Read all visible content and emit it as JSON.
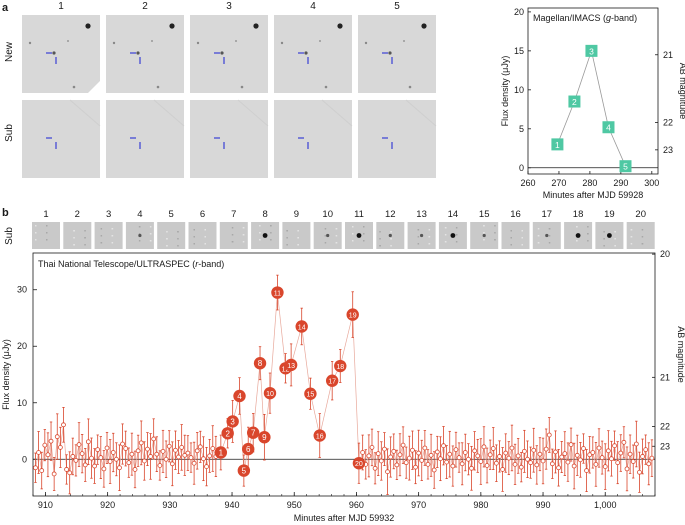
{
  "panel_a_label": "a",
  "panel_b_label": "b",
  "row_labels": {
    "new": "New",
    "sub": "Sub"
  },
  "frame_numbers_a": [
    "1",
    "2",
    "3",
    "4",
    "5"
  ],
  "chart_data": [
    {
      "type": "line",
      "title": "Magellan/IMACS (g-band)",
      "title_parts": {
        "prefix": "Magellan/IMACS (",
        "band": "g",
        "suffix": "-band)"
      },
      "xlabel": "Minutes after MJD 59928",
      "ylabel": "Flux density (μJy)",
      "ylabel_right": "AB magnitude",
      "xlim": [
        260,
        302
      ],
      "ylim": [
        -0.8,
        20.5
      ],
      "xticks": [
        "260",
        "270",
        "280",
        "290",
        "300"
      ],
      "xtick_values": [
        260,
        270,
        280,
        290,
        300
      ],
      "yticks": [
        "0",
        "5",
        "10",
        "15",
        "20"
      ],
      "ytick_values": [
        0,
        5,
        10,
        15,
        20
      ],
      "right_ticks": [
        {
          "label": "21",
          "flux": 14.5
        },
        {
          "label": "22",
          "flux": 5.8
        },
        {
          "label": "23",
          "flux": 2.3
        }
      ],
      "points": [
        {
          "label": "1",
          "x": 269.5,
          "y": 3.0
        },
        {
          "label": "2",
          "x": 275.0,
          "y": 8.5
        },
        {
          "label": "3",
          "x": 280.5,
          "y": 15.0
        },
        {
          "label": "4",
          "x": 286.0,
          "y": 5.2
        },
        {
          "label": "5",
          "x": 291.5,
          "y": 0.2
        }
      ],
      "color": "#4fc8a3"
    },
    {
      "type": "line",
      "title": "Thai National Telescope/ULTRASPEC (r-band)",
      "title_parts": {
        "prefix": "Thai National Telescope/ULTRASPEC (",
        "band": "r",
        "suffix": "-band)"
      },
      "xlabel": "Minutes after MJD 59932",
      "ylabel": "Flux density (μJy)",
      "ylabel_right": "AB magnitude",
      "sub_label": "Sub",
      "thumbnail_numbers": [
        "1",
        "2",
        "3",
        "4",
        "5",
        "6",
        "7",
        "8",
        "9",
        "10",
        "11",
        "12",
        "13",
        "14",
        "15",
        "16",
        "17",
        "18",
        "19",
        "20"
      ],
      "xlim": [
        908,
        1008
      ],
      "ylim": [
        -6.5,
        36.5
      ],
      "xticks": [
        "910",
        "920",
        "930",
        "940",
        "950",
        "960",
        "970",
        "980",
        "990",
        "1,000"
      ],
      "xtick_values": [
        910,
        920,
        930,
        940,
        950,
        960,
        970,
        980,
        990,
        1000
      ],
      "yticks": [
        "0",
        "10",
        "20",
        "30"
      ],
      "ytick_values": [
        0,
        10,
        20,
        30
      ],
      "right_ticks": [
        {
          "label": "20",
          "flux": 36.3
        },
        {
          "label": "21",
          "flux": 14.5
        },
        {
          "label": "22",
          "flux": 5.8
        },
        {
          "label": "23",
          "flux": 2.3
        }
      ],
      "numbered_points": [
        {
          "label": "1",
          "x": 938.2,
          "y": 1.2
        },
        {
          "label": "2",
          "x": 939.3,
          "y": 4.6
        },
        {
          "label": "3",
          "x": 940.1,
          "y": 6.7
        },
        {
          "label": "4",
          "x": 941.2,
          "y": 11.2
        },
        {
          "label": "5",
          "x": 941.9,
          "y": -2.0
        },
        {
          "label": "6",
          "x": 942.6,
          "y": 1.8
        },
        {
          "label": "7",
          "x": 943.4,
          "y": 4.7
        },
        {
          "label": "8",
          "x": 944.5,
          "y": 17.0
        },
        {
          "label": "9",
          "x": 945.2,
          "y": 3.9
        },
        {
          "label": "10",
          "x": 946.1,
          "y": 11.7
        },
        {
          "label": "11",
          "x": 947.3,
          "y": 29.5
        },
        {
          "label": "12",
          "x": 948.6,
          "y": 16.1
        },
        {
          "label": "13",
          "x": 949.5,
          "y": 16.7
        },
        {
          "label": "14",
          "x": 951.2,
          "y": 23.5
        },
        {
          "label": "15",
          "x": 952.6,
          "y": 11.6
        },
        {
          "label": "16",
          "x": 954.1,
          "y": 4.2
        },
        {
          "label": "17",
          "x": 956.1,
          "y": 13.9
        },
        {
          "label": "18",
          "x": 957.4,
          "y": 16.5
        },
        {
          "label": "19",
          "x": 959.4,
          "y": 25.6
        },
        {
          "label": "20",
          "x": 960.4,
          "y": -0.7
        }
      ],
      "data_points": [
        {
          "x": 908.4,
          "y": -1.5
        },
        {
          "x": 908.9,
          "y": 1.2
        },
        {
          "x": 909.4,
          "y": -2.0
        },
        {
          "x": 909.9,
          "y": 2.5
        },
        {
          "x": 910.4,
          "y": 0.8
        },
        {
          "x": 910.9,
          "y": 3.2
        },
        {
          "x": 911.4,
          "y": -2.6
        },
        {
          "x": 911.9,
          "y": 4.0
        },
        {
          "x": 912.4,
          "y": 2.1
        },
        {
          "x": 912.9,
          "y": 6.1
        },
        {
          "x": 913.4,
          "y": -1.8
        },
        {
          "x": 913.9,
          "y": -2.4
        },
        {
          "x": 914.4,
          "y": 0.5
        },
        {
          "x": 914.9,
          "y": -0.2
        },
        {
          "x": 915.4,
          "y": 2.6
        },
        {
          "x": 915.9,
          "y": 1.0
        },
        {
          "x": 916.4,
          "y": -1.0
        },
        {
          "x": 916.9,
          "y": 3.1
        },
        {
          "x": 917.4,
          "y": 0.2
        },
        {
          "x": 917.9,
          "y": -1.2
        },
        {
          "x": 918.4,
          "y": 1.7
        },
        {
          "x": 918.9,
          "y": 0.3
        },
        {
          "x": 919.4,
          "y": -1.7
        },
        {
          "x": 919.9,
          "y": 2.0
        },
        {
          "x": 920.4,
          "y": -0.4
        },
        {
          "x": 920.9,
          "y": 1.2
        },
        {
          "x": 921.4,
          "y": 0.0
        },
        {
          "x": 921.9,
          "y": -1.5
        },
        {
          "x": 922.4,
          "y": 2.7
        },
        {
          "x": 922.9,
          "y": 1.9
        },
        {
          "x": 923.4,
          "y": -0.6
        },
        {
          "x": 923.9,
          "y": 0.9
        },
        {
          "x": 924.4,
          "y": -1.8
        },
        {
          "x": 924.9,
          "y": 1.5
        },
        {
          "x": 925.4,
          "y": 2.9
        },
        {
          "x": 925.9,
          "y": -0.3
        },
        {
          "x": 926.4,
          "y": 1.8
        },
        {
          "x": 926.9,
          "y": 0.5
        },
        {
          "x": 927.4,
          "y": 3.6
        },
        {
          "x": 927.9,
          "y": 0.9
        },
        {
          "x": 928.4,
          "y": -1.1
        },
        {
          "x": 928.9,
          "y": 1.4
        },
        {
          "x": 929.4,
          "y": 0.0
        },
        {
          "x": 929.9,
          "y": 2.3
        },
        {
          "x": 930.4,
          "y": -0.8
        },
        {
          "x": 930.9,
          "y": 1.6
        },
        {
          "x": 931.4,
          "y": 0.4
        },
        {
          "x": 931.9,
          "y": 2.1
        },
        {
          "x": 932.4,
          "y": 0.7
        },
        {
          "x": 932.9,
          "y": 1.1
        },
        {
          "x": 933.4,
          "y": 0.3
        },
        {
          "x": 933.9,
          "y": -0.7
        },
        {
          "x": 934.4,
          "y": 1.5
        },
        {
          "x": 934.9,
          "y": 2.2
        },
        {
          "x": 935.4,
          "y": 0.1
        },
        {
          "x": 935.9,
          "y": -1.3
        },
        {
          "x": 936.4,
          "y": 0.6
        },
        {
          "x": 936.9,
          "y": 1.9
        },
        {
          "x": 937.4,
          "y": 0.5
        },
        {
          "x": 938.2,
          "y": 1.2
        },
        {
          "x": 939.3,
          "y": 4.6
        },
        {
          "x": 940.1,
          "y": 6.7
        },
        {
          "x": 941.2,
          "y": 11.2
        },
        {
          "x": 941.9,
          "y": -2.0
        },
        {
          "x": 942.6,
          "y": 1.8
        },
        {
          "x": 943.4,
          "y": 4.7
        },
        {
          "x": 944.5,
          "y": 17.0
        },
        {
          "x": 945.2,
          "y": 3.9
        },
        {
          "x": 946.1,
          "y": 11.7
        },
        {
          "x": 947.3,
          "y": 29.5
        },
        {
          "x": 948.6,
          "y": 16.1
        },
        {
          "x": 949.5,
          "y": 16.7
        },
        {
          "x": 951.2,
          "y": 23.5
        },
        {
          "x": 952.6,
          "y": 11.6
        },
        {
          "x": 954.1,
          "y": 4.2
        },
        {
          "x": 956.1,
          "y": 13.9
        },
        {
          "x": 957.4,
          "y": 16.5
        },
        {
          "x": 959.4,
          "y": 25.6
        },
        {
          "x": 960.4,
          "y": -0.7
        },
        {
          "x": 961.0,
          "y": 1.2
        },
        {
          "x": 961.5,
          "y": -0.9
        },
        {
          "x": 962.0,
          "y": 0.6
        },
        {
          "x": 962.5,
          "y": 2.1
        },
        {
          "x": 963.0,
          "y": -1.6
        },
        {
          "x": 963.5,
          "y": 1.0
        },
        {
          "x": 964.0,
          "y": -0.3
        },
        {
          "x": 964.5,
          "y": 1.8
        },
        {
          "x": 965.0,
          "y": -2.2
        },
        {
          "x": 965.5,
          "y": 0.4
        },
        {
          "x": 966.0,
          "y": 1.4
        },
        {
          "x": 966.5,
          "y": -1.0
        },
        {
          "x": 967.0,
          "y": 0.8
        },
        {
          "x": 967.5,
          "y": 2.5
        },
        {
          "x": 968.0,
          "y": -0.6
        },
        {
          "x": 968.5,
          "y": 0.2
        },
        {
          "x": 969.0,
          "y": 1.6
        },
        {
          "x": 969.5,
          "y": -1.4
        },
        {
          "x": 970.0,
          "y": 1.1
        },
        {
          "x": 970.5,
          "y": -0.2
        },
        {
          "x": 971.0,
          "y": 2.0
        },
        {
          "x": 971.5,
          "y": -0.9
        },
        {
          "x": 972.0,
          "y": 0.7
        },
        {
          "x": 972.5,
          "y": -1.9
        },
        {
          "x": 973.0,
          "y": 1.3
        },
        {
          "x": 973.5,
          "y": 0.1
        },
        {
          "x": 974.0,
          "y": 2.4
        },
        {
          "x": 974.5,
          "y": -0.5
        },
        {
          "x": 975.0,
          "y": 0.9
        },
        {
          "x": 975.5,
          "y": -1.2
        },
        {
          "x": 976.0,
          "y": 1.7
        },
        {
          "x": 976.5,
          "y": 0.3
        },
        {
          "x": 977.0,
          "y": -0.8
        },
        {
          "x": 977.5,
          "y": 1.2
        },
        {
          "x": 978.0,
          "y": 0.0
        },
        {
          "x": 978.5,
          "y": -1.6
        },
        {
          "x": 979.0,
          "y": 1.5
        },
        {
          "x": 979.5,
          "y": 0.6
        },
        {
          "x": 980.0,
          "y": -0.4
        },
        {
          "x": 980.5,
          "y": 2.2
        },
        {
          "x": 981.0,
          "y": -1.1
        },
        {
          "x": 981.5,
          "y": 0.8
        },
        {
          "x": 982.0,
          "y": 1.9
        },
        {
          "x": 982.5,
          "y": -0.7
        },
        {
          "x": 983.0,
          "y": 0.5
        },
        {
          "x": 983.5,
          "y": -1.8
        },
        {
          "x": 984.0,
          "y": 1.1
        },
        {
          "x": 984.5,
          "y": 0.2
        },
        {
          "x": 985.0,
          "y": 2.0
        },
        {
          "x": 985.5,
          "y": -0.9
        },
        {
          "x": 986.0,
          "y": 0.6
        },
        {
          "x": 986.5,
          "y": -1.4
        },
        {
          "x": 987.0,
          "y": 1.4
        },
        {
          "x": 987.5,
          "y": 0.0
        },
        {
          "x": 988.0,
          "y": -0.6
        },
        {
          "x": 988.5,
          "y": 1.6
        },
        {
          "x": 989.0,
          "y": -1.0
        },
        {
          "x": 989.5,
          "y": 0.9
        },
        {
          "x": 990.0,
          "y": -0.3
        },
        {
          "x": 990.5,
          "y": 1.8
        },
        {
          "x": 991.0,
          "y": 4.3
        },
        {
          "x": 991.5,
          "y": -0.8
        },
        {
          "x": 992.0,
          "y": 1.3
        },
        {
          "x": 992.5,
          "y": -1.5
        },
        {
          "x": 993.0,
          "y": 0.4
        },
        {
          "x": 993.5,
          "y": 1.0
        },
        {
          "x": 994.0,
          "y": -0.5
        },
        {
          "x": 994.5,
          "y": 2.6
        },
        {
          "x": 995.0,
          "y": -1.2
        },
        {
          "x": 995.5,
          "y": 0.7
        },
        {
          "x": 996.0,
          "y": -0.1
        },
        {
          "x": 996.5,
          "y": 1.9
        },
        {
          "x": 997.0,
          "y": -2.0
        },
        {
          "x": 997.5,
          "y": 0.8
        },
        {
          "x": 998.0,
          "y": 1.2
        },
        {
          "x": 998.5,
          "y": -0.9
        },
        {
          "x": 999.0,
          "y": 2.0
        },
        {
          "x": 999.5,
          "y": 0.3
        },
        {
          "x": 1000.0,
          "y": -1.3
        },
        {
          "x": 1000.5,
          "y": 1.5
        },
        {
          "x": 1001.0,
          "y": 0.1
        },
        {
          "x": 1001.5,
          "y": 2.4
        },
        {
          "x": 1002.0,
          "y": -0.6
        },
        {
          "x": 1002.5,
          "y": 1.1
        },
        {
          "x": 1003.0,
          "y": 3.0
        },
        {
          "x": 1003.5,
          "y": -1.7
        },
        {
          "x": 1004.0,
          "y": 0.9
        },
        {
          "x": 1004.5,
          "y": -0.4
        },
        {
          "x": 1005.0,
          "y": 2.7
        },
        {
          "x": 1005.5,
          "y": -2.3
        },
        {
          "x": 1006.0,
          "y": 0.5
        },
        {
          "x": 1006.5,
          "y": 1.7
        },
        {
          "x": 1007.0,
          "y": -0.8
        },
        {
          "x": 1007.5,
          "y": 0.2
        }
      ],
      "color": "#d9462c"
    }
  ],
  "colors": {
    "marker_a": "#4fc8a3",
    "marker_b": "#d9462c",
    "axis": "#1a1a1a",
    "crosshair": "#3a3fd6",
    "thumb_bg": "#d8d8d8"
  }
}
